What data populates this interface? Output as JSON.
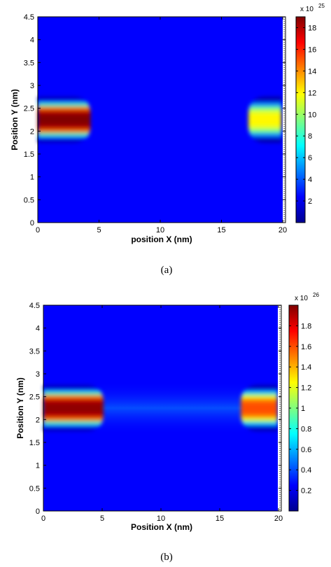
{
  "chart_data": [
    {
      "type": "heatmap",
      "panel_label": "(a)",
      "xlabel": "position X (nm)",
      "ylabel": "Position Y (nm)",
      "xlim": [
        0,
        20
      ],
      "ylim": [
        0,
        4.5
      ],
      "x_ticks": [
        0,
        5,
        10,
        15,
        20
      ],
      "y_ticks": [
        0,
        0.5,
        1,
        1.5,
        2,
        2.5,
        3,
        3.5,
        4,
        4.5
      ],
      "colorbar": {
        "multiplier": "x 10",
        "exponent": "25",
        "range": [
          0,
          19
        ],
        "ticks": [
          2,
          4,
          6,
          8,
          10,
          12,
          14,
          16,
          18
        ]
      },
      "regions": [
        {
          "x_from": 0,
          "x_to": 4.3,
          "y_center": 2.25,
          "y_halfwidth": 0.5,
          "peak": 19
        },
        {
          "x_from": 17.2,
          "x_to": 19.9,
          "y_center": 2.25,
          "y_halfwidth": 0.5,
          "peak": 12
        }
      ],
      "channel_fill": 0
    },
    {
      "type": "heatmap",
      "panel_label": "(b)",
      "xlabel": "Position X (nm)",
      "ylabel": "Position Y (nm)",
      "xlim": [
        0,
        20
      ],
      "ylim": [
        0,
        4.5
      ],
      "x_ticks": [
        0,
        5,
        10,
        15,
        20
      ],
      "y_ticks": [
        0,
        0.5,
        1,
        1.5,
        2,
        2.5,
        3,
        3.5,
        4,
        4.5
      ],
      "colorbar": {
        "multiplier": "x 10",
        "exponent": "26",
        "range": [
          0,
          2
        ],
        "ticks": [
          0.2,
          0.4,
          0.6,
          0.8,
          1,
          1.2,
          1.4,
          1.6,
          1.8
        ]
      },
      "regions": [
        {
          "x_from": 0,
          "x_to": 5.1,
          "y_center": 2.25,
          "y_halfwidth": 0.5,
          "peak": 1.97
        },
        {
          "x_from": 16.8,
          "x_to": 19.9,
          "y_center": 2.25,
          "y_halfwidth": 0.5,
          "peak": 1.6
        }
      ],
      "channel_fill": 0.18
    }
  ]
}
